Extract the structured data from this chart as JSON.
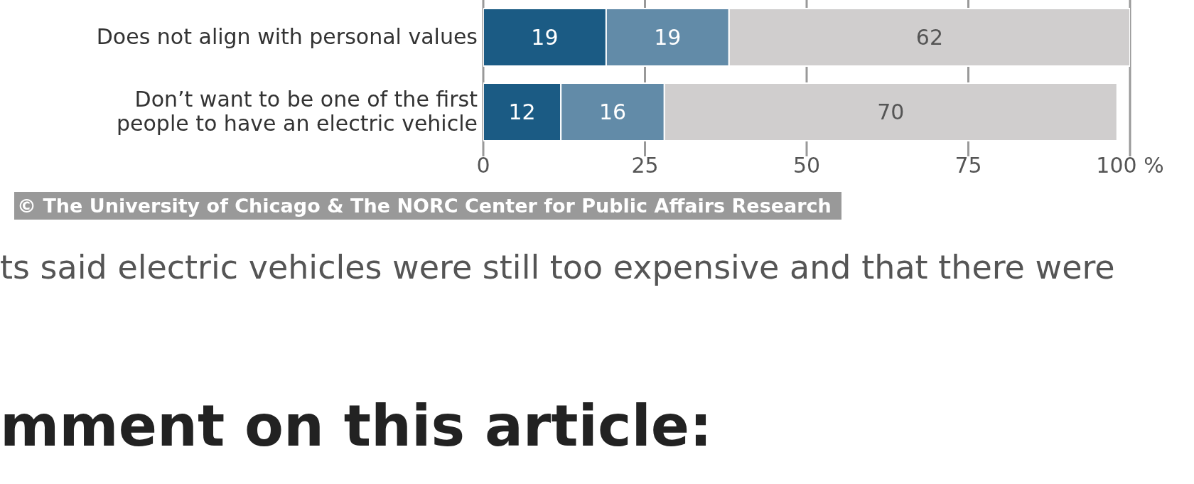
{
  "chart_data": {
    "type": "bar",
    "orientation": "horizontal",
    "stacked": true,
    "categories": [
      "Does not align with personal values",
      "Don’t want to be one of the first people to have an electric vehicle"
    ],
    "series": [
      {
        "color": "#1b5b84",
        "values": [
          19,
          12
        ]
      },
      {
        "color": "#628ba8",
        "values": [
          19,
          16
        ]
      },
      {
        "color": "#d0cece",
        "values": [
          62,
          70
        ]
      }
    ],
    "data_labels": true,
    "xlim": [
      0,
      100
    ],
    "xticks": [
      0,
      25,
      50,
      75,
      {
        "value": 100,
        "label": "100 %"
      }
    ],
    "grid": "x",
    "legend": false,
    "annotations": [
      "© The University of Chicago & The NORC Center for Public Affairs Research",
      "ts said electric vehicles were still too expensive and that there were",
      "mment on this article:"
    ]
  }
}
